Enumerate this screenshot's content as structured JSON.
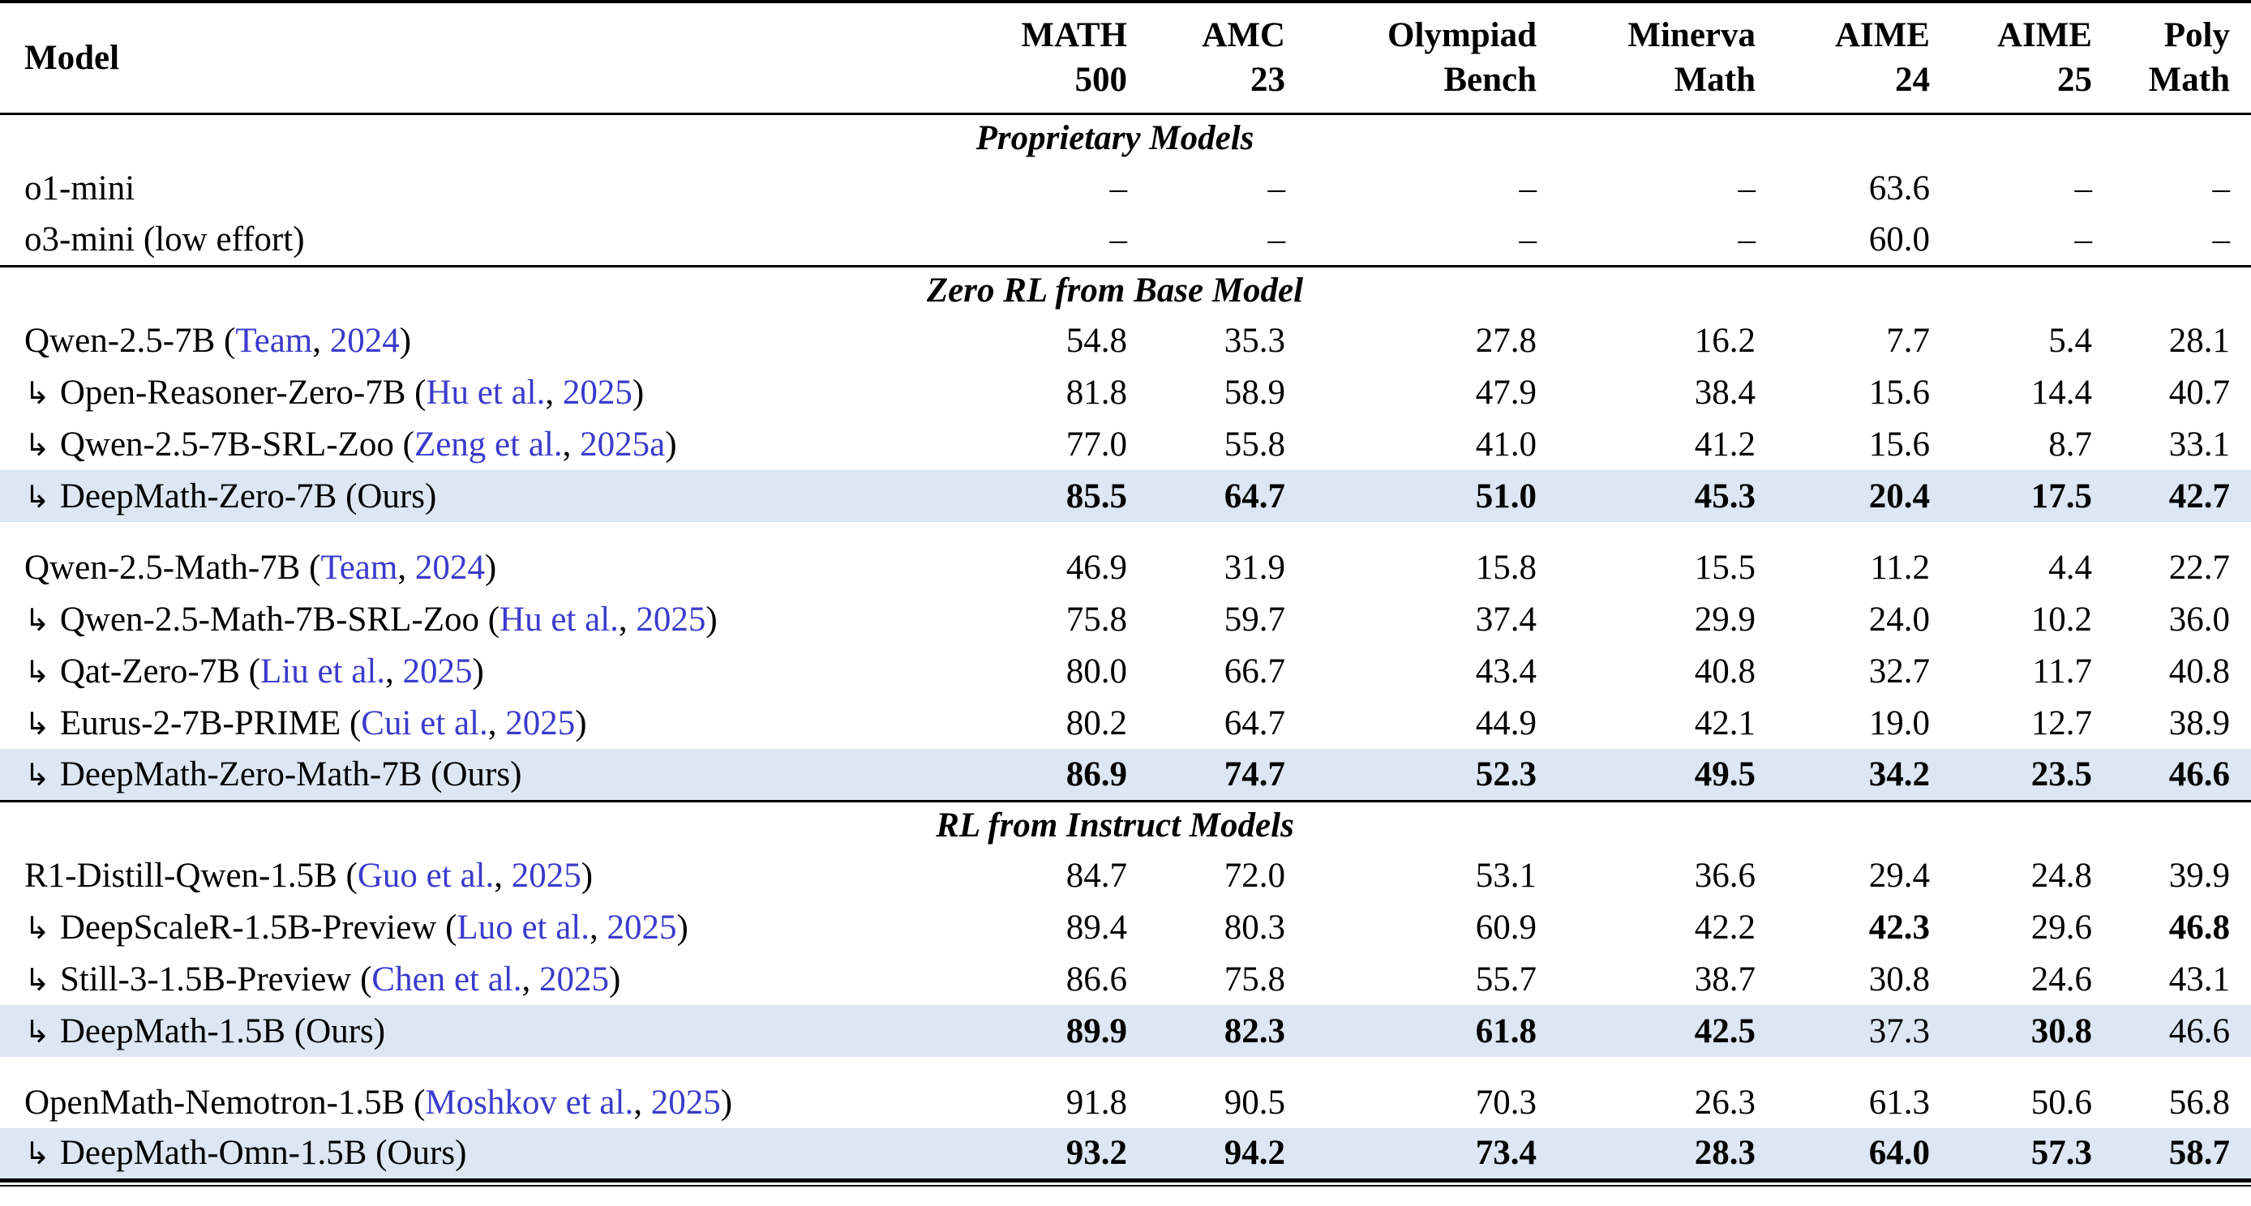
{
  "colors": {
    "highlight": "#dce7f3",
    "citation": "#3b3bcc",
    "text": "#000000"
  },
  "icons": {
    "indent_arrow": "↳"
  },
  "header": {
    "model_label": "Model",
    "columns": [
      {
        "line1": "MATH",
        "line2": "500"
      },
      {
        "line1": "AMC",
        "line2": "23"
      },
      {
        "line1": "Olympiad",
        "line2": "Bench"
      },
      {
        "line1": "Minerva",
        "line2": "Math"
      },
      {
        "line1": "AIME",
        "line2": "24"
      },
      {
        "line1": "AIME",
        "line2": "25"
      },
      {
        "line1": "Poly",
        "line2": "Math"
      }
    ]
  },
  "sections": [
    {
      "title": "Proprietary Models",
      "groups": [
        {
          "rows": [
            {
              "arrow": false,
              "name": "o1-mini",
              "cite": null,
              "highlight": false,
              "cells": [
                {
                  "v": "–"
                },
                {
                  "v": "–"
                },
                {
                  "v": "–"
                },
                {
                  "v": "–"
                },
                {
                  "v": "63.6"
                },
                {
                  "v": "–"
                },
                {
                  "v": "–"
                }
              ]
            },
            {
              "arrow": false,
              "name": "o3-mini (low effort)",
              "cite": null,
              "highlight": false,
              "cells": [
                {
                  "v": "–"
                },
                {
                  "v": "–"
                },
                {
                  "v": "–"
                },
                {
                  "v": "–"
                },
                {
                  "v": "60.0"
                },
                {
                  "v": "–"
                },
                {
                  "v": "–"
                }
              ]
            }
          ]
        }
      ]
    },
    {
      "title": "Zero RL from Base Model",
      "groups": [
        {
          "rows": [
            {
              "arrow": false,
              "name": "Qwen-2.5-7B",
              "cite": {
                "author": "Team",
                "year": "2024"
              },
              "highlight": false,
              "cells": [
                {
                  "v": "54.8"
                },
                {
                  "v": "35.3"
                },
                {
                  "v": "27.8"
                },
                {
                  "v": "16.2"
                },
                {
                  "v": "7.7"
                },
                {
                  "v": "5.4"
                },
                {
                  "v": "28.1"
                }
              ]
            },
            {
              "arrow": true,
              "name": "Open-Reasoner-Zero-7B",
              "cite": {
                "author": "Hu et al.",
                "year": "2025"
              },
              "highlight": false,
              "cells": [
                {
                  "v": "81.8"
                },
                {
                  "v": "58.9"
                },
                {
                  "v": "47.9"
                },
                {
                  "v": "38.4"
                },
                {
                  "v": "15.6"
                },
                {
                  "v": "14.4"
                },
                {
                  "v": "40.7"
                }
              ]
            },
            {
              "arrow": true,
              "name": "Qwen-2.5-7B-SRL-Zoo",
              "cite": {
                "author": "Zeng et al.",
                "year": "2025a"
              },
              "highlight": false,
              "cells": [
                {
                  "v": "77.0"
                },
                {
                  "v": "55.8"
                },
                {
                  "v": "41.0"
                },
                {
                  "v": "41.2"
                },
                {
                  "v": "15.6"
                },
                {
                  "v": "8.7"
                },
                {
                  "v": "33.1"
                }
              ]
            },
            {
              "arrow": true,
              "name": "DeepMath-Zero-7B (Ours)",
              "cite": null,
              "highlight": true,
              "cells": [
                {
                  "v": "85.5",
                  "b": true
                },
                {
                  "v": "64.7",
                  "b": true
                },
                {
                  "v": "51.0",
                  "b": true
                },
                {
                  "v": "45.3",
                  "b": true
                },
                {
                  "v": "20.4",
                  "b": true
                },
                {
                  "v": "17.5",
                  "b": true
                },
                {
                  "v": "42.7",
                  "b": true
                }
              ]
            }
          ]
        },
        {
          "rows": [
            {
              "arrow": false,
              "name": "Qwen-2.5-Math-7B",
              "cite": {
                "author": "Team",
                "year": "2024"
              },
              "highlight": false,
              "cells": [
                {
                  "v": "46.9"
                },
                {
                  "v": "31.9"
                },
                {
                  "v": "15.8"
                },
                {
                  "v": "15.5"
                },
                {
                  "v": "11.2"
                },
                {
                  "v": "4.4"
                },
                {
                  "v": "22.7"
                }
              ]
            },
            {
              "arrow": true,
              "name": "Qwen-2.5-Math-7B-SRL-Zoo",
              "cite": {
                "author": "Hu et al.",
                "year": "2025"
              },
              "highlight": false,
              "cells": [
                {
                  "v": "75.8"
                },
                {
                  "v": "59.7"
                },
                {
                  "v": "37.4"
                },
                {
                  "v": "29.9"
                },
                {
                  "v": "24.0"
                },
                {
                  "v": "10.2"
                },
                {
                  "v": "36.0"
                }
              ]
            },
            {
              "arrow": true,
              "name": "Qat-Zero-7B",
              "cite": {
                "author": "Liu et al.",
                "year": "2025"
              },
              "highlight": false,
              "cells": [
                {
                  "v": "80.0"
                },
                {
                  "v": "66.7"
                },
                {
                  "v": "43.4"
                },
                {
                  "v": "40.8"
                },
                {
                  "v": "32.7"
                },
                {
                  "v": "11.7"
                },
                {
                  "v": "40.8"
                }
              ]
            },
            {
              "arrow": true,
              "name": "Eurus-2-7B-PRIME",
              "cite": {
                "author": "Cui et al.",
                "year": "2025"
              },
              "highlight": false,
              "cells": [
                {
                  "v": "80.2"
                },
                {
                  "v": "64.7"
                },
                {
                  "v": "44.9"
                },
                {
                  "v": "42.1"
                },
                {
                  "v": "19.0"
                },
                {
                  "v": "12.7"
                },
                {
                  "v": "38.9"
                }
              ]
            },
            {
              "arrow": true,
              "name": "DeepMath-Zero-Math-7B (Ours)",
              "cite": null,
              "highlight": true,
              "cells": [
                {
                  "v": "86.9",
                  "b": true
                },
                {
                  "v": "74.7",
                  "b": true
                },
                {
                  "v": "52.3",
                  "b": true
                },
                {
                  "v": "49.5",
                  "b": true
                },
                {
                  "v": "34.2",
                  "b": true
                },
                {
                  "v": "23.5",
                  "b": true
                },
                {
                  "v": "46.6",
                  "b": true
                }
              ]
            }
          ]
        }
      ]
    },
    {
      "title": "RL from Instruct Models",
      "groups": [
        {
          "rows": [
            {
              "arrow": false,
              "name": "R1-Distill-Qwen-1.5B",
              "cite": {
                "author": "Guo et al.",
                "year": "2025"
              },
              "highlight": false,
              "cells": [
                {
                  "v": "84.7"
                },
                {
                  "v": "72.0"
                },
                {
                  "v": "53.1"
                },
                {
                  "v": "36.6"
                },
                {
                  "v": "29.4"
                },
                {
                  "v": "24.8"
                },
                {
                  "v": "39.9"
                }
              ]
            },
            {
              "arrow": true,
              "name": "DeepScaleR-1.5B-Preview",
              "cite": {
                "author": "Luo et al.",
                "year": "2025"
              },
              "highlight": false,
              "cells": [
                {
                  "v": "89.4"
                },
                {
                  "v": "80.3"
                },
                {
                  "v": "60.9"
                },
                {
                  "v": "42.2"
                },
                {
                  "v": "42.3",
                  "b": true
                },
                {
                  "v": "29.6"
                },
                {
                  "v": "46.8",
                  "b": true
                }
              ]
            },
            {
              "arrow": true,
              "name": "Still-3-1.5B-Preview",
              "cite": {
                "author": "Chen et al.",
                "year": "2025"
              },
              "highlight": false,
              "cells": [
                {
                  "v": "86.6"
                },
                {
                  "v": "75.8"
                },
                {
                  "v": "55.7"
                },
                {
                  "v": "38.7"
                },
                {
                  "v": "30.8"
                },
                {
                  "v": "24.6"
                },
                {
                  "v": "43.1"
                }
              ]
            },
            {
              "arrow": true,
              "name": "DeepMath-1.5B (Ours)",
              "cite": null,
              "highlight": true,
              "cells": [
                {
                  "v": "89.9",
                  "b": true
                },
                {
                  "v": "82.3",
                  "b": true
                },
                {
                  "v": "61.8",
                  "b": true
                },
                {
                  "v": "42.5",
                  "b": true
                },
                {
                  "v": "37.3"
                },
                {
                  "v": "30.8",
                  "b": true
                },
                {
                  "v": "46.6"
                }
              ]
            }
          ]
        },
        {
          "rows": [
            {
              "arrow": false,
              "name": "OpenMath-Nemotron-1.5B",
              "cite": {
                "author": "Moshkov et al.",
                "year": "2025"
              },
              "highlight": false,
              "cells": [
                {
                  "v": "91.8"
                },
                {
                  "v": "90.5"
                },
                {
                  "v": "70.3"
                },
                {
                  "v": "26.3"
                },
                {
                  "v": "61.3"
                },
                {
                  "v": "50.6"
                },
                {
                  "v": "56.8"
                }
              ]
            },
            {
              "arrow": true,
              "name": "DeepMath-Omn-1.5B (Ours)",
              "cite": null,
              "highlight": true,
              "cells": [
                {
                  "v": "93.2",
                  "b": true
                },
                {
                  "v": "94.2",
                  "b": true
                },
                {
                  "v": "73.4",
                  "b": true
                },
                {
                  "v": "28.3",
                  "b": true
                },
                {
                  "v": "64.0",
                  "b": true
                },
                {
                  "v": "57.3",
                  "b": true
                },
                {
                  "v": "58.7",
                  "b": true
                }
              ]
            }
          ]
        }
      ]
    }
  ]
}
